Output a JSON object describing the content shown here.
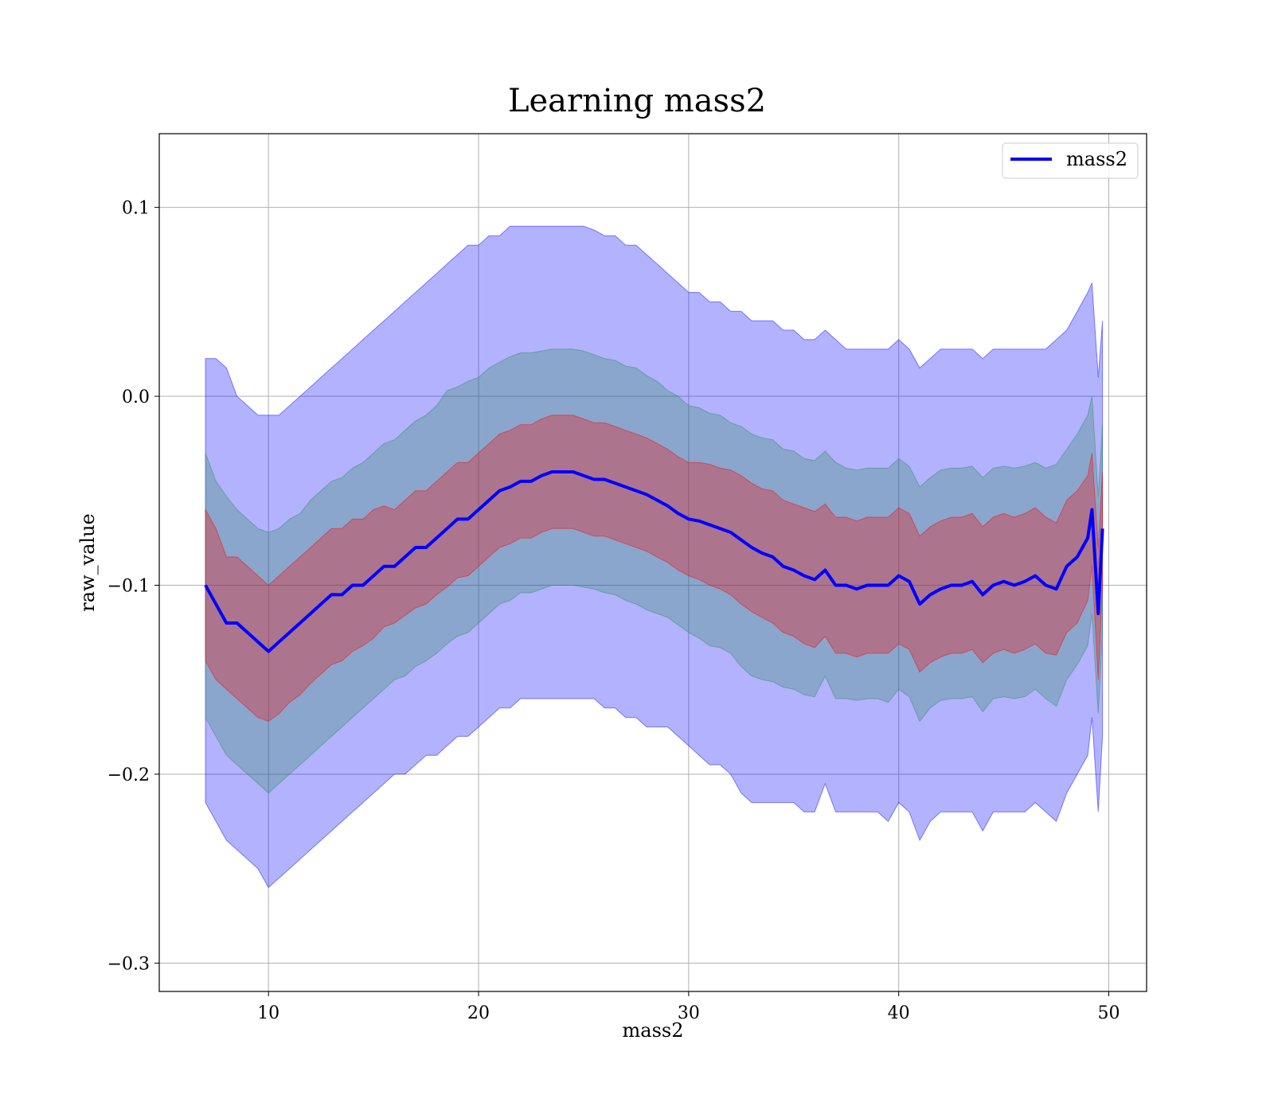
{
  "chart_data": {
    "type": "line",
    "title": "Learning mass2",
    "xlabel": "mass2",
    "ylabel": "raw_value",
    "xlim": [
      4.8,
      51.8
    ],
    "ylim": [
      -0.315,
      0.139
    ],
    "xticks": [
      10,
      20,
      30,
      40,
      50
    ],
    "xtick_labels": [
      "10",
      "20",
      "30",
      "40",
      "50"
    ],
    "yticks": [
      -0.3,
      -0.2,
      -0.1,
      0.0,
      0.1
    ],
    "ytick_labels": [
      "−0.3",
      "−0.2",
      "−0.1",
      "0.0",
      "0.1"
    ],
    "grid": true,
    "legend_position": "top-right",
    "series": [
      {
        "name": "mass2",
        "color": "#0000ff",
        "x": [
          7.0,
          7.5,
          8.0,
          8.5,
          9.0,
          9.5,
          10.0,
          10.5,
          11.0,
          11.5,
          12.0,
          12.5,
          13.0,
          13.5,
          14.0,
          14.5,
          15.0,
          15.5,
          16.0,
          16.5,
          17.0,
          17.5,
          18.0,
          18.5,
          19.0,
          19.5,
          20.0,
          20.5,
          21.0,
          21.5,
          22.0,
          22.5,
          23.0,
          23.5,
          24.0,
          24.5,
          25.0,
          25.5,
          26.0,
          26.5,
          27.0,
          27.5,
          28.0,
          28.5,
          29.0,
          29.5,
          30.0,
          30.5,
          31.0,
          31.5,
          32.0,
          32.5,
          33.0,
          33.5,
          34.0,
          34.5,
          35.0,
          35.5,
          36.0,
          36.5,
          37.0,
          37.5,
          38.0,
          38.5,
          39.0,
          39.5,
          40.0,
          40.5,
          41.0,
          41.5,
          42.0,
          42.5,
          43.0,
          43.5,
          44.0,
          44.5,
          45.0,
          45.5,
          46.0,
          46.5,
          47.0,
          47.5,
          48.0,
          48.5,
          49.0,
          49.2,
          49.5,
          49.7
        ],
        "y": [
          -0.1,
          -0.11,
          -0.12,
          -0.12,
          -0.125,
          -0.13,
          -0.135,
          -0.13,
          -0.125,
          -0.12,
          -0.115,
          -0.11,
          -0.105,
          -0.105,
          -0.1,
          -0.1,
          -0.095,
          -0.09,
          -0.09,
          -0.085,
          -0.08,
          -0.08,
          -0.075,
          -0.07,
          -0.065,
          -0.065,
          -0.06,
          -0.055,
          -0.05,
          -0.048,
          -0.045,
          -0.045,
          -0.042,
          -0.04,
          -0.04,
          -0.04,
          -0.042,
          -0.044,
          -0.044,
          -0.046,
          -0.048,
          -0.05,
          -0.052,
          -0.055,
          -0.058,
          -0.062,
          -0.065,
          -0.066,
          -0.068,
          -0.07,
          -0.072,
          -0.076,
          -0.08,
          -0.083,
          -0.085,
          -0.09,
          -0.092,
          -0.095,
          -0.097,
          -0.092,
          -0.1,
          -0.1,
          -0.102,
          -0.1,
          -0.1,
          -0.1,
          -0.095,
          -0.098,
          -0.11,
          -0.105,
          -0.102,
          -0.1,
          -0.1,
          -0.098,
          -0.105,
          -0.1,
          -0.098,
          -0.1,
          -0.098,
          -0.095,
          -0.1,
          -0.102,
          -0.09,
          -0.085,
          -0.075,
          -0.06,
          -0.115,
          -0.07
        ],
        "bands": [
          {
            "fill": "#0000ff",
            "opacity": 0.3,
            "lower": [
              -0.215,
              -0.225,
              -0.235,
              -0.24,
              -0.245,
              -0.25,
              -0.26,
              -0.255,
              -0.25,
              -0.245,
              -0.24,
              -0.235,
              -0.23,
              -0.225,
              -0.22,
              -0.215,
              -0.21,
              -0.205,
              -0.2,
              -0.2,
              -0.195,
              -0.19,
              -0.19,
              -0.185,
              -0.18,
              -0.18,
              -0.175,
              -0.17,
              -0.165,
              -0.165,
              -0.16,
              -0.16,
              -0.16,
              -0.16,
              -0.16,
              -0.16,
              -0.16,
              -0.16,
              -0.165,
              -0.165,
              -0.17,
              -0.17,
              -0.175,
              -0.175,
              -0.175,
              -0.18,
              -0.185,
              -0.19,
              -0.195,
              -0.195,
              -0.2,
              -0.21,
              -0.215,
              -0.215,
              -0.215,
              -0.215,
              -0.215,
              -0.22,
              -0.22,
              -0.205,
              -0.22,
              -0.22,
              -0.22,
              -0.22,
              -0.22,
              -0.225,
              -0.215,
              -0.22,
              -0.235,
              -0.225,
              -0.22,
              -0.22,
              -0.22,
              -0.22,
              -0.23,
              -0.22,
              -0.22,
              -0.22,
              -0.22,
              -0.215,
              -0.22,
              -0.225,
              -0.21,
              -0.2,
              -0.19,
              -0.17,
              -0.22,
              -0.18
            ],
            "upper": [
              0.02,
              0.02,
              0.015,
              0.0,
              -0.005,
              -0.01,
              -0.01,
              -0.01,
              -0.005,
              0.0,
              0.005,
              0.01,
              0.015,
              0.02,
              0.025,
              0.03,
              0.035,
              0.04,
              0.045,
              0.05,
              0.055,
              0.06,
              0.065,
              0.07,
              0.075,
              0.08,
              0.08,
              0.085,
              0.085,
              0.09,
              0.09,
              0.09,
              0.09,
              0.09,
              0.09,
              0.09,
              0.09,
              0.088,
              0.085,
              0.085,
              0.08,
              0.08,
              0.075,
              0.07,
              0.065,
              0.06,
              0.055,
              0.055,
              0.05,
              0.05,
              0.045,
              0.045,
              0.04,
              0.04,
              0.04,
              0.035,
              0.035,
              0.03,
              0.03,
              0.035,
              0.03,
              0.025,
              0.025,
              0.025,
              0.025,
              0.025,
              0.03,
              0.025,
              0.015,
              0.02,
              0.025,
              0.025,
              0.025,
              0.025,
              0.02,
              0.025,
              0.025,
              0.025,
              0.025,
              0.025,
              0.025,
              0.03,
              0.035,
              0.045,
              0.055,
              0.06,
              0.01,
              0.04
            ]
          },
          {
            "fill": "#2e8b57",
            "opacity": 0.3,
            "lower": [
              -0.17,
              -0.18,
              -0.19,
              -0.195,
              -0.2,
              -0.205,
              -0.21,
              -0.205,
              -0.2,
              -0.195,
              -0.19,
              -0.185,
              -0.18,
              -0.175,
              -0.17,
              -0.165,
              -0.16,
              -0.155,
              -0.15,
              -0.148,
              -0.143,
              -0.14,
              -0.136,
              -0.131,
              -0.127,
              -0.125,
              -0.12,
              -0.115,
              -0.11,
              -0.108,
              -0.104,
              -0.104,
              -0.102,
              -0.1,
              -0.1,
              -0.1,
              -0.101,
              -0.102,
              -0.104,
              -0.105,
              -0.108,
              -0.11,
              -0.113,
              -0.115,
              -0.117,
              -0.121,
              -0.125,
              -0.128,
              -0.132,
              -0.133,
              -0.136,
              -0.143,
              -0.148,
              -0.15,
              -0.151,
              -0.154,
              -0.155,
              -0.158,
              -0.159,
              -0.148,
              -0.16,
              -0.16,
              -0.161,
              -0.16,
              -0.16,
              -0.162,
              -0.155,
              -0.159,
              -0.172,
              -0.165,
              -0.161,
              -0.16,
              -0.16,
              -0.159,
              -0.167,
              -0.16,
              -0.159,
              -0.16,
              -0.159,
              -0.155,
              -0.16,
              -0.164,
              -0.15,
              -0.142,
              -0.132,
              -0.115,
              -0.168,
              -0.125
            ],
            "upper": [
              -0.03,
              -0.045,
              -0.053,
              -0.06,
              -0.065,
              -0.07,
              -0.072,
              -0.07,
              -0.065,
              -0.062,
              -0.055,
              -0.05,
              -0.045,
              -0.043,
              -0.038,
              -0.035,
              -0.03,
              -0.025,
              -0.023,
              -0.018,
              -0.013,
              -0.01,
              -0.005,
              0.003,
              0.005,
              0.008,
              0.01,
              0.015,
              0.018,
              0.021,
              0.023,
              0.023,
              0.024,
              0.025,
              0.025,
              0.025,
              0.024,
              0.022,
              0.02,
              0.019,
              0.016,
              0.015,
              0.011,
              0.008,
              0.003,
              0.0,
              -0.005,
              -0.006,
              -0.009,
              -0.01,
              -0.014,
              -0.016,
              -0.02,
              -0.022,
              -0.023,
              -0.028,
              -0.029,
              -0.033,
              -0.034,
              -0.029,
              -0.035,
              -0.038,
              -0.039,
              -0.038,
              -0.038,
              -0.038,
              -0.033,
              -0.037,
              -0.048,
              -0.043,
              -0.039,
              -0.038,
              -0.038,
              -0.037,
              -0.043,
              -0.038,
              -0.037,
              -0.038,
              -0.037,
              -0.035,
              -0.038,
              -0.036,
              -0.028,
              -0.02,
              -0.01,
              0.0,
              -0.053,
              -0.015
            ]
          },
          {
            "fill": "#ff0000",
            "opacity": 0.3,
            "lower": [
              -0.14,
              -0.15,
              -0.155,
              -0.16,
              -0.165,
              -0.17,
              -0.172,
              -0.168,
              -0.162,
              -0.158,
              -0.152,
              -0.147,
              -0.142,
              -0.14,
              -0.135,
              -0.132,
              -0.128,
              -0.122,
              -0.12,
              -0.116,
              -0.112,
              -0.11,
              -0.105,
              -0.101,
              -0.096,
              -0.095,
              -0.09,
              -0.085,
              -0.08,
              -0.078,
              -0.075,
              -0.075,
              -0.072,
              -0.07,
              -0.07,
              -0.07,
              -0.072,
              -0.074,
              -0.074,
              -0.076,
              -0.078,
              -0.08,
              -0.082,
              -0.085,
              -0.088,
              -0.092,
              -0.095,
              -0.097,
              -0.1,
              -0.102,
              -0.105,
              -0.11,
              -0.114,
              -0.117,
              -0.12,
              -0.125,
              -0.127,
              -0.131,
              -0.133,
              -0.127,
              -0.136,
              -0.136,
              -0.138,
              -0.136,
              -0.136,
              -0.136,
              -0.131,
              -0.134,
              -0.146,
              -0.141,
              -0.138,
              -0.136,
              -0.136,
              -0.134,
              -0.141,
              -0.136,
              -0.134,
              -0.136,
              -0.134,
              -0.131,
              -0.136,
              -0.137,
              -0.125,
              -0.12,
              -0.108,
              -0.09,
              -0.15,
              -0.1
            ],
            "upper": [
              -0.06,
              -0.07,
              -0.085,
              -0.085,
              -0.09,
              -0.095,
              -0.1,
              -0.095,
              -0.09,
              -0.085,
              -0.08,
              -0.075,
              -0.07,
              -0.07,
              -0.065,
              -0.065,
              -0.06,
              -0.058,
              -0.06,
              -0.055,
              -0.05,
              -0.05,
              -0.045,
              -0.04,
              -0.035,
              -0.035,
              -0.03,
              -0.025,
              -0.02,
              -0.018,
              -0.015,
              -0.015,
              -0.012,
              -0.01,
              -0.01,
              -0.01,
              -0.012,
              -0.014,
              -0.014,
              -0.016,
              -0.018,
              -0.02,
              -0.022,
              -0.025,
              -0.028,
              -0.032,
              -0.035,
              -0.035,
              -0.036,
              -0.038,
              -0.039,
              -0.042,
              -0.046,
              -0.049,
              -0.05,
              -0.055,
              -0.057,
              -0.059,
              -0.061,
              -0.057,
              -0.064,
              -0.064,
              -0.066,
              -0.064,
              -0.064,
              -0.064,
              -0.059,
              -0.062,
              -0.074,
              -0.069,
              -0.066,
              -0.064,
              -0.064,
              -0.062,
              -0.069,
              -0.064,
              -0.062,
              -0.064,
              -0.062,
              -0.059,
              -0.064,
              -0.067,
              -0.055,
              -0.05,
              -0.042,
              -0.03,
              -0.08,
              -0.04
            ]
          }
        ]
      }
    ]
  }
}
